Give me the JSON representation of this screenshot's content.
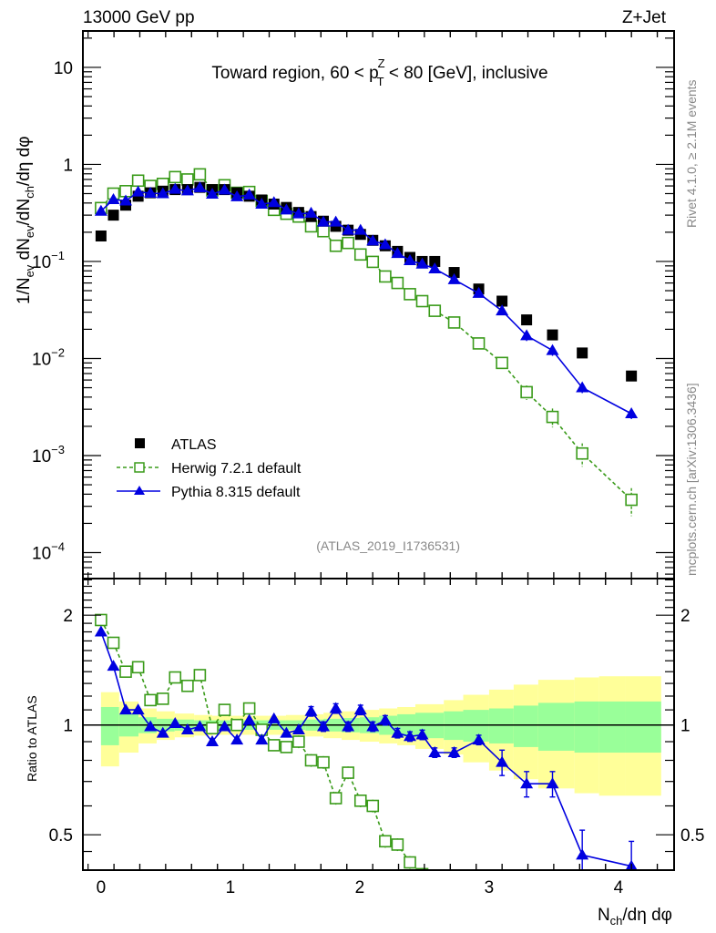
{
  "chart_data": {
    "type": "scatter",
    "header_left": "13000 GeV pp",
    "header_right": "Z+Jet",
    "title": "Toward region, 60 < p_T^Z < 80 [GeV], inclusive",
    "title_parts": {
      "pre": "Toward region, 60 < p",
      "sup": "Z",
      "sub": "T",
      "post": " < 80 [GeV], inclusive"
    },
    "analysis_id": "(ATLAS_2019_I1736531)",
    "side_label_top": "Rivet 4.1.0, ≥ 2.1M events",
    "side_label_bottom": "mcplots.cern.ch [arXiv:1306.3436]",
    "main": {
      "ylabel": "1/N_ev dN_ev/dN_ch/dη dφ",
      "yscale": "log",
      "ylim": [
        5.4e-05,
        23.7
      ],
      "yticks": [
        {
          "value": 10,
          "label": "10"
        },
        {
          "value": 1,
          "label": "1"
        },
        {
          "value": 0.1,
          "label": "10",
          "exp": "−1"
        },
        {
          "value": 0.01,
          "label": "10",
          "exp": "−2"
        },
        {
          "value": 0.001,
          "label": "10",
          "exp": "−3"
        },
        {
          "value": 0.0001,
          "label": "10",
          "exp": "−4"
        }
      ]
    },
    "ratio": {
      "ylabel": "Ratio to ATLAS",
      "yscale": "log",
      "ylim": [
        0.4,
        2.52
      ],
      "yticks": [
        {
          "value": 2,
          "label": "2"
        },
        {
          "value": 1,
          "label": "1"
        },
        {
          "value": 0.5,
          "label": "0.5"
        }
      ],
      "band_edges": [
        0.0,
        0.14,
        0.29,
        0.43,
        0.57,
        0.72,
        0.86,
        1.0,
        1.15,
        1.29,
        1.43,
        1.58,
        1.72,
        1.86,
        2.0,
        2.15,
        2.29,
        2.43,
        2.65,
        2.8,
        3.0,
        3.19,
        3.38,
        3.66,
        3.85,
        4.05,
        4.33
      ],
      "band_inner": [
        0.12,
        0.07,
        0.05,
        0.04,
        0.035,
        0.03,
        0.03,
        0.03,
        0.03,
        0.03,
        0.03,
        0.035,
        0.04,
        0.045,
        0.05,
        0.06,
        0.07,
        0.08,
        0.09,
        0.1,
        0.11,
        0.13,
        0.15,
        0.16,
        0.16,
        0.16
      ],
      "band_outer": [
        0.23,
        0.16,
        0.11,
        0.09,
        0.075,
        0.065,
        0.06,
        0.06,
        0.06,
        0.06,
        0.065,
        0.07,
        0.08,
        0.09,
        0.1,
        0.11,
        0.12,
        0.14,
        0.17,
        0.21,
        0.25,
        0.29,
        0.33,
        0.35,
        0.36,
        0.36
      ],
      "reference": 1
    },
    "xlabel": "N_ch/dη dφ",
    "xlim": [
      -0.14,
      4.43
    ],
    "xticks": [
      0,
      1,
      2,
      3,
      4
    ],
    "legend": {
      "placement": "bottom-left",
      "entries": [
        {
          "name": "ATLAS",
          "color": "#000000",
          "marker": "filled-square",
          "line": "none"
        },
        {
          "name": "Herwig 7.2.1 default",
          "color": "#3a9b1a",
          "marker": "open-square",
          "line": "dashed"
        },
        {
          "name": "Pythia 8.315 default",
          "color": "#0000e0",
          "marker": "filled-triangle",
          "line": "solid"
        }
      ]
    },
    "x": [
      0.0,
      0.096,
      0.191,
      0.287,
      0.382,
      0.478,
      0.573,
      0.669,
      0.764,
      0.86,
      0.955,
      1.051,
      1.146,
      1.242,
      1.337,
      1.433,
      1.528,
      1.624,
      1.719,
      1.815,
      1.91,
      2.006,
      2.101,
      2.197,
      2.292,
      2.388,
      2.483,
      2.58,
      2.73,
      2.92,
      3.1,
      3.29,
      3.49,
      3.72,
      4.1
    ],
    "series": [
      {
        "name": "ATLAS",
        "values": [
          0.183,
          0.3,
          0.38,
          0.47,
          0.51,
          0.53,
          0.55,
          0.55,
          0.58,
          0.55,
          0.55,
          0.51,
          0.47,
          0.43,
          0.39,
          0.36,
          0.32,
          0.29,
          0.26,
          0.23,
          0.21,
          0.19,
          0.165,
          0.145,
          0.127,
          0.11,
          0.1,
          0.1,
          0.077,
          0.052,
          0.039,
          0.025,
          0.0175,
          0.0114,
          0.0066
        ]
      },
      {
        "name": "Herwig 7.2.1 default",
        "ratio": [
          1.94,
          1.68,
          1.4,
          1.44,
          1.17,
          1.18,
          1.35,
          1.28,
          1.37,
          0.98,
          1.1,
          1.0,
          1.11,
          0.97,
          0.88,
          0.87,
          0.9,
          0.8,
          0.79,
          0.63,
          0.74,
          0.62,
          0.6,
          0.48,
          0.47,
          0.42,
          0.39,
          null,
          null,
          null,
          null,
          null,
          null,
          null,
          null
        ],
        "values": [
          0.355,
          0.5,
          0.53,
          0.68,
          0.6,
          0.63,
          0.74,
          0.7,
          0.79,
          0.54,
          0.61,
          0.51,
          0.52,
          0.42,
          0.34,
          0.31,
          0.29,
          0.23,
          0.205,
          0.145,
          0.155,
          0.118,
          0.099,
          0.07,
          0.06,
          0.046,
          0.039,
          0.031,
          0.0235,
          0.0143,
          0.009,
          0.0045,
          0.0025,
          0.00105,
          0.00035
        ]
      },
      {
        "name": "Pythia 8.315 default",
        "ratio": [
          1.8,
          1.45,
          1.1,
          1.1,
          0.99,
          0.95,
          1.01,
          0.97,
          0.99,
          0.9,
          0.99,
          0.91,
          1.03,
          0.91,
          1.04,
          0.95,
          0.97,
          1.09,
          0.99,
          1.11,
          0.99,
          1.1,
          0.99,
          1.03,
          0.95,
          0.93,
          0.94,
          0.84,
          0.84,
          0.91,
          0.79,
          0.69,
          0.69,
          0.44,
          0.41
        ],
        "values": [
          0.33,
          0.435,
          0.42,
          0.52,
          0.505,
          0.5,
          0.555,
          0.535,
          0.575,
          0.495,
          0.545,
          0.465,
          0.485,
          0.39,
          0.405,
          0.34,
          0.31,
          0.315,
          0.255,
          0.255,
          0.21,
          0.21,
          0.163,
          0.149,
          0.121,
          0.102,
          0.094,
          0.084,
          0.065,
          0.047,
          0.031,
          0.0172,
          0.0121,
          0.005,
          0.0027
        ]
      }
    ]
  }
}
